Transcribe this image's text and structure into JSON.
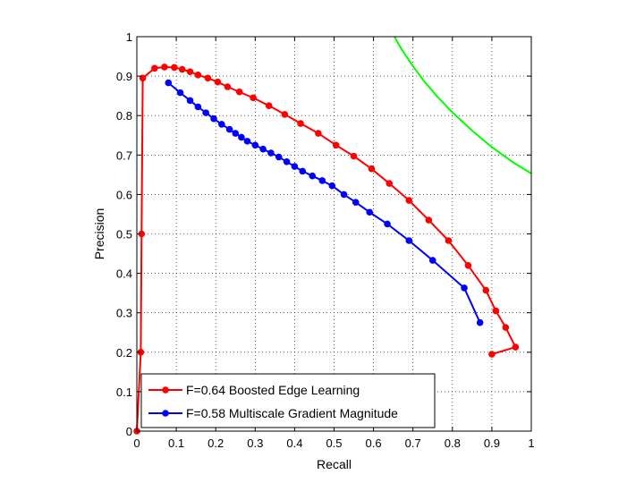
{
  "chart_data": {
    "type": "line",
    "title": "",
    "xlabel": "Recall",
    "ylabel": "Precision",
    "xlim": [
      0,
      1
    ],
    "ylim": [
      0,
      1
    ],
    "grid": true,
    "legend_position": "bottom-left",
    "x_ticks": [
      "0",
      "0.1",
      "0.2",
      "0.3",
      "0.4",
      "0.5",
      "0.6",
      "0.7",
      "0.8",
      "0.9",
      "1"
    ],
    "y_ticks": [
      "0",
      "0.1",
      "0.2",
      "0.3",
      "0.4",
      "0.5",
      "0.6",
      "0.7",
      "0.8",
      "0.9",
      "1"
    ],
    "series": [
      {
        "name": "F=0.64 Boosted Edge Learning",
        "color": "#ff0000",
        "markers": true,
        "points": [
          [
            0.0,
            0.0
          ],
          [
            0.01,
            0.2
          ],
          [
            0.012,
            0.5
          ],
          [
            0.015,
            0.895
          ],
          [
            0.045,
            0.92
          ],
          [
            0.07,
            0.923
          ],
          [
            0.095,
            0.922
          ],
          [
            0.115,
            0.917
          ],
          [
            0.135,
            0.911
          ],
          [
            0.155,
            0.903
          ],
          [
            0.18,
            0.895
          ],
          [
            0.205,
            0.885
          ],
          [
            0.23,
            0.873
          ],
          [
            0.26,
            0.86
          ],
          [
            0.295,
            0.845
          ],
          [
            0.335,
            0.825
          ],
          [
            0.375,
            0.803
          ],
          [
            0.415,
            0.78
          ],
          [
            0.46,
            0.755
          ],
          [
            0.505,
            0.725
          ],
          [
            0.55,
            0.697
          ],
          [
            0.595,
            0.665
          ],
          [
            0.64,
            0.628
          ],
          [
            0.69,
            0.585
          ],
          [
            0.74,
            0.535
          ],
          [
            0.79,
            0.483
          ],
          [
            0.84,
            0.42
          ],
          [
            0.885,
            0.357
          ],
          [
            0.91,
            0.305
          ],
          [
            0.935,
            0.263
          ],
          [
            0.96,
            0.213
          ],
          [
            0.9,
            0.195
          ]
        ]
      },
      {
        "name": "F=0.58 Multiscale Gradient Magnitude",
        "color": "#0000ff",
        "markers": true,
        "points": [
          [
            0.08,
            0.883
          ],
          [
            0.11,
            0.858
          ],
          [
            0.135,
            0.838
          ],
          [
            0.155,
            0.822
          ],
          [
            0.175,
            0.807
          ],
          [
            0.195,
            0.792
          ],
          [
            0.215,
            0.778
          ],
          [
            0.235,
            0.765
          ],
          [
            0.25,
            0.755
          ],
          [
            0.265,
            0.745
          ],
          [
            0.28,
            0.735
          ],
          [
            0.3,
            0.725
          ],
          [
            0.32,
            0.715
          ],
          [
            0.34,
            0.705
          ],
          [
            0.36,
            0.695
          ],
          [
            0.38,
            0.683
          ],
          [
            0.4,
            0.671
          ],
          [
            0.42,
            0.659
          ],
          [
            0.445,
            0.647
          ],
          [
            0.47,
            0.635
          ],
          [
            0.495,
            0.622
          ],
          [
            0.525,
            0.6
          ],
          [
            0.555,
            0.58
          ],
          [
            0.59,
            0.555
          ],
          [
            0.635,
            0.525
          ],
          [
            0.69,
            0.483
          ],
          [
            0.75,
            0.433
          ],
          [
            0.83,
            0.363
          ],
          [
            0.87,
            0.275
          ]
        ]
      },
      {
        "name": "",
        "color": "#00ff00",
        "markers": false,
        "iso_f": 0.79,
        "points": [
          [
            0.653,
            1.0
          ],
          [
            0.67,
            0.97
          ],
          [
            0.7,
            0.925
          ],
          [
            0.73,
            0.885
          ],
          [
            0.76,
            0.85
          ],
          [
            0.8,
            0.808
          ],
          [
            0.85,
            0.762
          ],
          [
            0.9,
            0.72
          ],
          [
            0.95,
            0.684
          ],
          [
            1.0,
            0.653
          ]
        ]
      }
    ]
  }
}
